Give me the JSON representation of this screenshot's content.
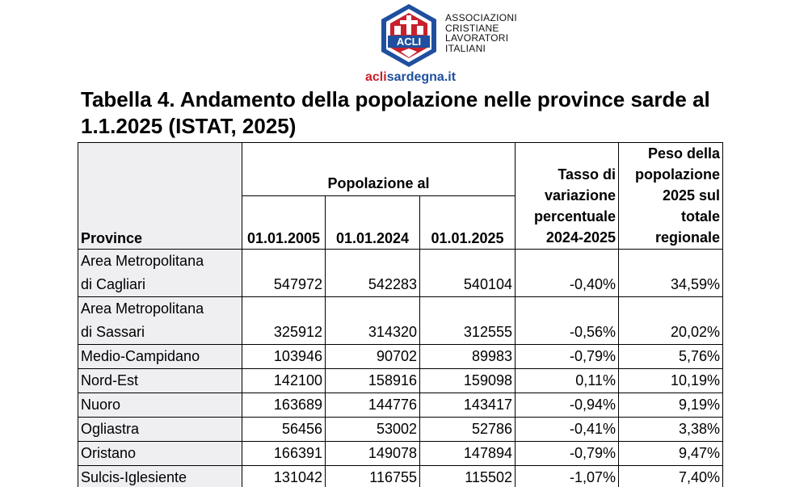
{
  "logo": {
    "badge_text": "ACLI",
    "org_lines": [
      "ASSOCIAZIONI",
      "CRISTIANE",
      "LAVORATORI",
      "ITALIANI"
    ],
    "site_prefix": "acli",
    "site_suffix": "sardegna.it",
    "colors": {
      "blue": "#1f4f9e",
      "red": "#c8202c"
    }
  },
  "title": "Tabella 4. Andamento della popolazione nelle province sarde al 1.1.2025 (ISTAT, 2025)",
  "table": {
    "header": {
      "province": "Province",
      "group": "Popolazione al",
      "dates": [
        "01.01.2005",
        "01.01.2024",
        "01.01.2025"
      ],
      "rate_lines": [
        "Tasso di",
        "variazione",
        "percentuale",
        "2024-2025"
      ],
      "share_lines": [
        "Peso della",
        "popolazione",
        "2025 sul",
        "totale",
        "regionale"
      ]
    },
    "rows": [
      {
        "province": [
          "Area Metropolitana",
          "di Cagliari"
        ],
        "values": [
          "547972",
          "542283",
          "540104",
          "-0,40%",
          "34,59%"
        ]
      },
      {
        "province": [
          "Area Metropolitana",
          "di Sassari"
        ],
        "values": [
          "325912",
          "314320",
          "312555",
          "-0,56%",
          "20,02%"
        ]
      },
      {
        "province": [
          "Medio-Campidano"
        ],
        "values": [
          "103946",
          "90702",
          "89983",
          "-0,79%",
          "5,76%"
        ]
      },
      {
        "province": [
          "Nord-Est"
        ],
        "values": [
          "142100",
          "158916",
          "159098",
          "0,11%",
          "10,19%"
        ]
      },
      {
        "province": [
          "Nuoro"
        ],
        "values": [
          "163689",
          "144776",
          "143417",
          "-0,94%",
          "9,19%"
        ]
      },
      {
        "province": [
          "Ogliastra"
        ],
        "values": [
          "56456",
          "53002",
          "52786",
          "-0,41%",
          "3,38%"
        ]
      },
      {
        "province": [
          "Oristano"
        ],
        "values": [
          "166391",
          "149078",
          "147894",
          "-0,79%",
          "9,47%"
        ]
      },
      {
        "province": [
          "Sulcis-Iglesiente"
        ],
        "values": [
          "131042",
          "116755",
          "115502",
          "-1,07%",
          "7,40%"
        ]
      }
    ]
  }
}
